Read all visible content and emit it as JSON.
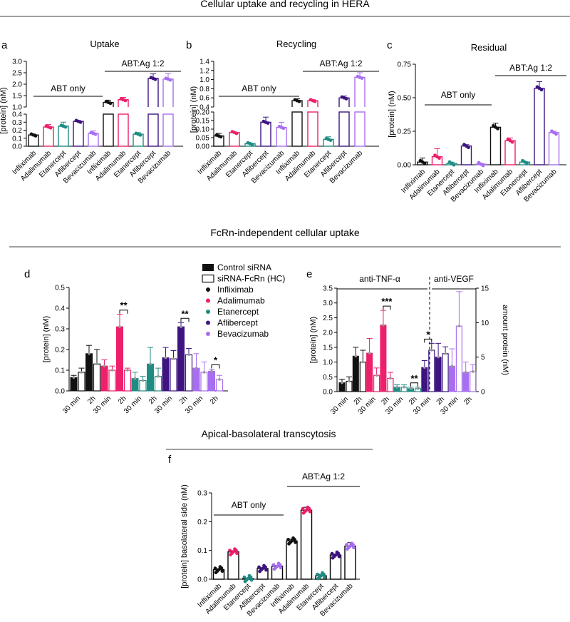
{
  "section_titles": {
    "s1": "Cellular uptake and recycling in HERA",
    "s2": "FcRn-independent cellular uptake",
    "s3": "Apical-basolateral transcytosis"
  },
  "colors": {
    "Infliximab": "#111111",
    "Adalimumab": "#ee1f6b",
    "Etanercept": "#1f8c84",
    "Aflibercept": "#3d1480",
    "Bevacizumab": "#a86ef0"
  },
  "chart_data": [
    {
      "panel": "a",
      "type": "bar",
      "title": "Uptake",
      "ylabel": "[protein] (nM)",
      "broken_axis": true,
      "lower_range": [
        0,
        0.4
      ],
      "lower_ticks": [
        "0.0",
        "0.1",
        "0.2",
        "0.3",
        "0.4"
      ],
      "upper_range": [
        1.0,
        3.0
      ],
      "upper_ticks": [
        "1.0",
        "1.5",
        "2.0",
        "2.5",
        "3.0"
      ],
      "group_labels": [
        "ABT only",
        "ABT:Ag 1:2"
      ],
      "categories": [
        "Infliximab",
        "Adalimumab",
        "Etanercept",
        "Aflibercept",
        "Bevacizumab",
        "Infliximab",
        "Adalimumab",
        "Etanercept",
        "Aflibercept",
        "Bevacizumab"
      ],
      "values": [
        0.14,
        0.24,
        0.25,
        0.31,
        0.16,
        1.2,
        1.32,
        0.15,
        2.25,
        2.22
      ],
      "errors": [
        0.01,
        0.03,
        0.05,
        0.01,
        0.03,
        0.1,
        0.1,
        0.02,
        0.2,
        0.25
      ]
    },
    {
      "panel": "b",
      "type": "bar",
      "title": "Recycling",
      "ylabel": "[protein] (nM)",
      "broken_axis": true,
      "lower_range": [
        0,
        0.2
      ],
      "lower_ticks": [
        "0.00",
        "0.05",
        "0.10",
        "0.15",
        "0.20"
      ],
      "upper_range": [
        0.4,
        1.4
      ],
      "upper_ticks": [
        "0.4",
        "0.6",
        "0.8",
        "1.0",
        "1.2",
        "1.4"
      ],
      "group_labels": [
        "ABT only",
        "ABT:Ag 1:2"
      ],
      "categories": [
        "Infliximab",
        "Adalimumab",
        "Etanercept",
        "Aflibercept",
        "Bevacizumab",
        "Infliximab",
        "Adalimumab",
        "Etanercept",
        "Aflibercept",
        "Bevacizumab"
      ],
      "values": [
        0.06,
        0.08,
        0.015,
        0.14,
        0.11,
        0.54,
        0.54,
        0.04,
        0.6,
        1.05
      ],
      "errors": [
        0.015,
        0.003,
        0.003,
        0.03,
        0.03,
        0.04,
        0.02,
        0.015,
        0.04,
        0.1
      ]
    },
    {
      "panel": "c",
      "type": "bar",
      "title": "Residual",
      "ylabel": "[protein] (nM)",
      "broken_axis": false,
      "ylim": [
        0,
        0.75
      ],
      "ticks": [
        "0.00",
        "0.25",
        "0.50",
        "0.75"
      ],
      "group_labels": [
        "ABT only",
        "ABT:Ag 1:2"
      ],
      "categories": [
        "Infliximab",
        "Adalimumab",
        "Etanercept",
        "Aflibercept",
        "Bevacizumab",
        "Infliximab",
        "Adalimumab",
        "Etanercept",
        "Aflibercept",
        "Bevacizumab"
      ],
      "values": [
        0.02,
        0.06,
        0.01,
        0.14,
        0.005,
        0.28,
        0.18,
        0.02,
        0.57,
        0.24
      ],
      "errors": [
        0.03,
        0.06,
        0.01,
        0.01,
        0.005,
        0.03,
        0.02,
        0.005,
        0.05,
        0.01
      ]
    },
    {
      "panel": "d",
      "type": "bar",
      "ylabel": "[protein] (nM)",
      "ylim": [
        0,
        0.5
      ],
      "ticks": [
        "0.0",
        "0.1",
        "0.2",
        "0.3",
        "0.4",
        "0.5"
      ],
      "legend": [
        "Control siRNA",
        "siRNA-FcRn (HC)",
        "Infliximab",
        "Adalimumab",
        "Etanercept",
        "Aflibercept",
        "Bevacizumab"
      ],
      "x_labels": [
        "30 min",
        "2h",
        "30 min",
        "2h",
        "30 min",
        "2h",
        "30 min",
        "2h",
        "30 min",
        "2h"
      ],
      "antibodies": [
        "Infliximab",
        "Infliximab",
        "Adalimumab",
        "Adalimumab",
        "Etanercept",
        "Etanercept",
        "Aflibercept",
        "Aflibercept",
        "Bevacizumab",
        "Bevacizumab"
      ],
      "control_values": [
        0.065,
        0.18,
        0.12,
        0.31,
        0.06,
        0.13,
        0.16,
        0.31,
        0.11,
        0.095
      ],
      "control_errors": [
        0.01,
        0.04,
        0.03,
        0.06,
        0.03,
        0.08,
        0.05,
        0.02,
        0.07,
        0.01
      ],
      "fcrn_values": [
        0.09,
        0.13,
        0.1,
        0.1,
        0.05,
        0.07,
        0.155,
        0.175,
        0.09,
        0.055
      ],
      "fcrn_errors": [
        0.02,
        0.07,
        0.02,
        0.01,
        0.02,
        0.04,
        0.04,
        0.03,
        0.05,
        0.02
      ],
      "significance": [
        {
          "pair": 3,
          "label": "**"
        },
        {
          "pair": 7,
          "label": "**"
        },
        {
          "pair": 9,
          "label": "*"
        }
      ]
    },
    {
      "panel": "e",
      "type": "bar",
      "ylabel": "[protein] (nM)",
      "ylim": [
        0,
        3.5
      ],
      "ticks": [
        "0.0",
        "0.5",
        "1.0",
        "1.5",
        "2.0",
        "2.5",
        "3.0",
        "3.5"
      ],
      "ylabel_right": "amount protein (nM)",
      "ylim_right": [
        0,
        15
      ],
      "ticks_right": [
        "0",
        "5",
        "10",
        "15"
      ],
      "group_labels": [
        "anti-TNF-α",
        "anti-VEGF"
      ],
      "x_labels": [
        "30 min",
        "2h",
        "30 min",
        "2h",
        "30 min",
        "2h",
        "30 min",
        "2h",
        "30 min",
        "2h"
      ],
      "antibodies": [
        "Infliximab",
        "Infliximab",
        "Adalimumab",
        "Adalimumab",
        "Etanercept",
        "Etanercept",
        "Aflibercept",
        "Aflibercept",
        "Bevacizumab",
        "Bevacizumab"
      ],
      "control_values": [
        0.3,
        1.2,
        1.3,
        2.25,
        0.15,
        0.1,
        3.5,
        5.0,
        3.7,
        2.8
      ],
      "control_errors": [
        0.12,
        0.3,
        0.5,
        0.5,
        0.08,
        0.05,
        1.0,
        2.0,
        2.5,
        1.5
      ],
      "fcrn_values": [
        0.35,
        1.0,
        0.55,
        0.45,
        0.15,
        0.1,
        6.0,
        5.5,
        9.5,
        2.9
      ],
      "fcrn_errors": [
        0.15,
        0.4,
        0.25,
        0.2,
        0.08,
        0.05,
        1.0,
        1.0,
        5.0,
        1.0
      ],
      "significance": [
        {
          "pair": 3,
          "label": "***"
        },
        {
          "pair": 5,
          "label": "**"
        },
        {
          "pair": 6,
          "label": "*"
        }
      ]
    },
    {
      "panel": "f",
      "type": "bar",
      "ylabel": "[protein] basolateral side (nM)",
      "ylim": [
        0,
        0.3
      ],
      "ticks": [
        "0.0",
        "0.1",
        "0.2",
        "0.3"
      ],
      "group_labels": [
        "ABT only",
        "ABT:Ag 1:2"
      ],
      "categories": [
        "Infliximab",
        "Adalimumab",
        "Etanercept",
        "Aflibercept",
        "Bevacizumab",
        "Infliximab",
        "Adalimumab",
        "Etanercept",
        "Aflibercept",
        "Bevacizumab"
      ],
      "values": [
        0.033,
        0.095,
        0.002,
        0.037,
        0.045,
        0.133,
        0.24,
        0.012,
        0.084,
        0.115
      ],
      "errors": [
        0.003,
        0.004,
        0.001,
        0.003,
        0.002,
        0.006,
        0.01,
        0.005,
        0.003,
        0.012
      ]
    }
  ]
}
